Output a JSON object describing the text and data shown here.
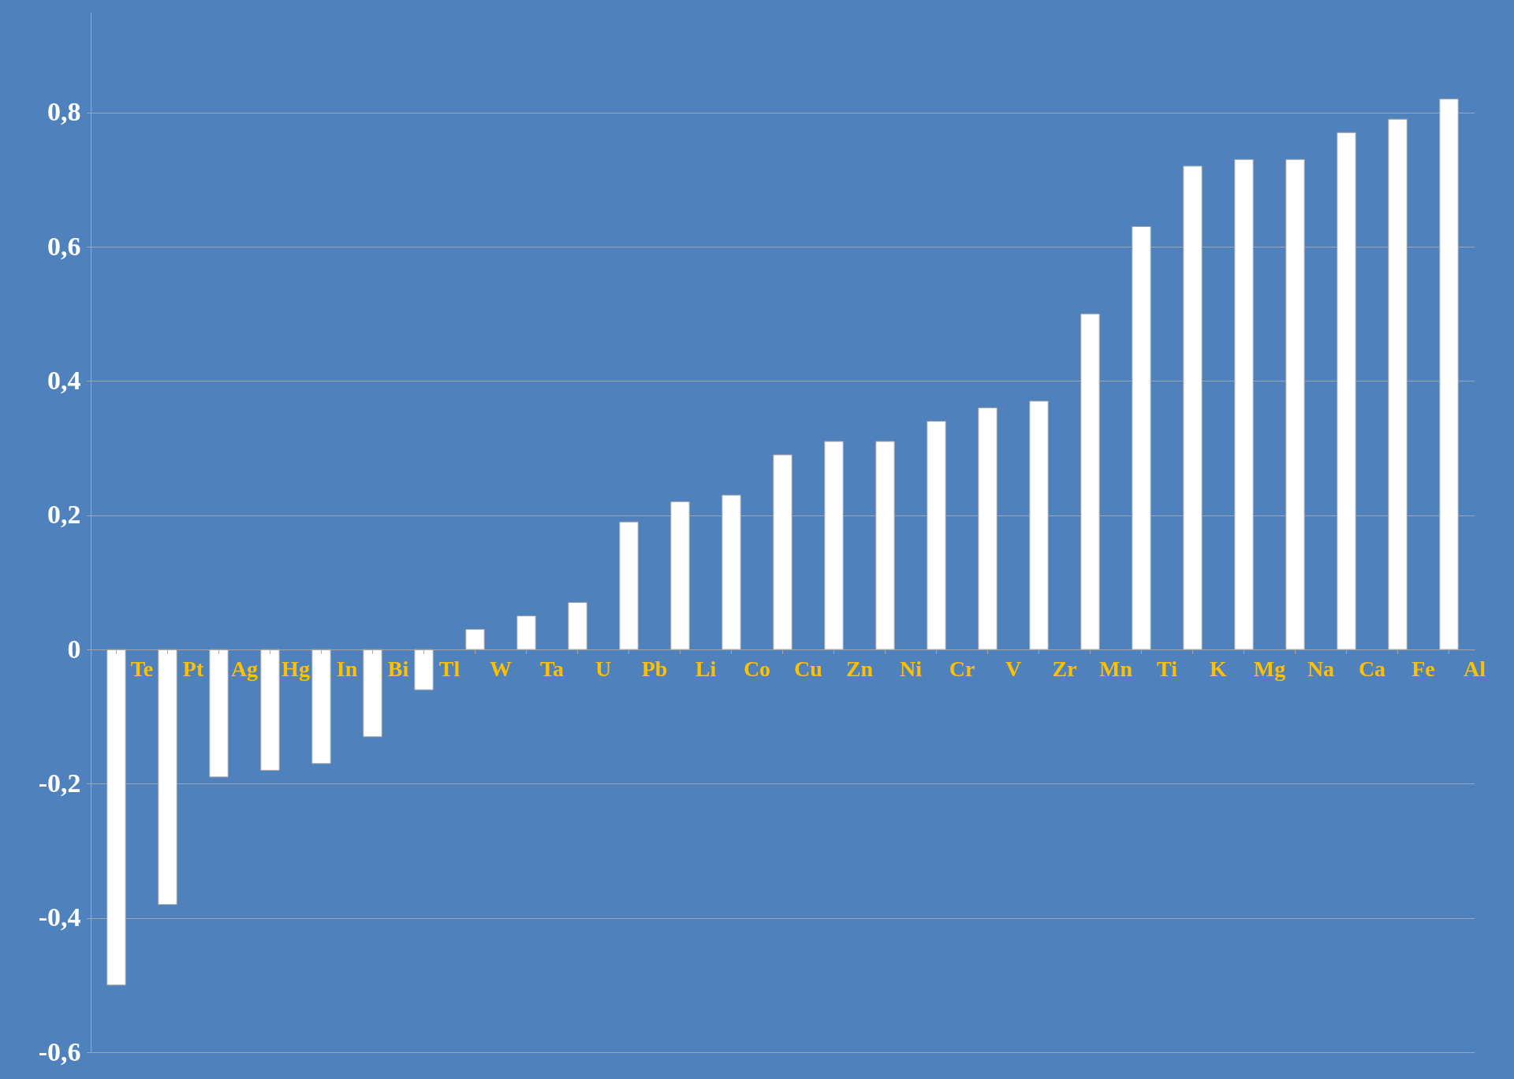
{
  "chart_data": {
    "type": "bar",
    "categories": [
      "Te",
      "Pt",
      "Ag",
      "Hg",
      "In",
      "Bi",
      "Tl",
      "W",
      "Ta",
      "U",
      "Pb",
      "Li",
      "Co",
      "Cu",
      "Zn",
      "Ni",
      "Cr",
      "V",
      "Zr",
      "Mn",
      "Ti",
      "K",
      "Mg",
      "Na",
      "Ca",
      "Fe",
      "Al"
    ],
    "values": [
      -0.5,
      -0.38,
      -0.19,
      -0.18,
      -0.17,
      -0.13,
      -0.06,
      0.03,
      0.05,
      0.07,
      0.19,
      0.22,
      0.23,
      0.29,
      0.31,
      0.31,
      0.34,
      0.36,
      0.37,
      0.5,
      0.63,
      0.72,
      0.73,
      0.73,
      0.77,
      0.79,
      0.82
    ],
    "color": "#ffffff",
    "ylim": [
      -0.6,
      0.95
    ],
    "yticks": [
      {
        "value": -0.6,
        "label": "-0,6"
      },
      {
        "value": -0.4,
        "label": "-0,4"
      },
      {
        "value": -0.2,
        "label": "-0,2"
      },
      {
        "value": 0,
        "label": "0"
      },
      {
        "value": 0.2,
        "label": "0,2"
      },
      {
        "value": 0.4,
        "label": "0,4"
      },
      {
        "value": 0.6,
        "label": "0,6"
      },
      {
        "value": 0.8,
        "label": "0,8"
      }
    ],
    "grid": "y"
  }
}
